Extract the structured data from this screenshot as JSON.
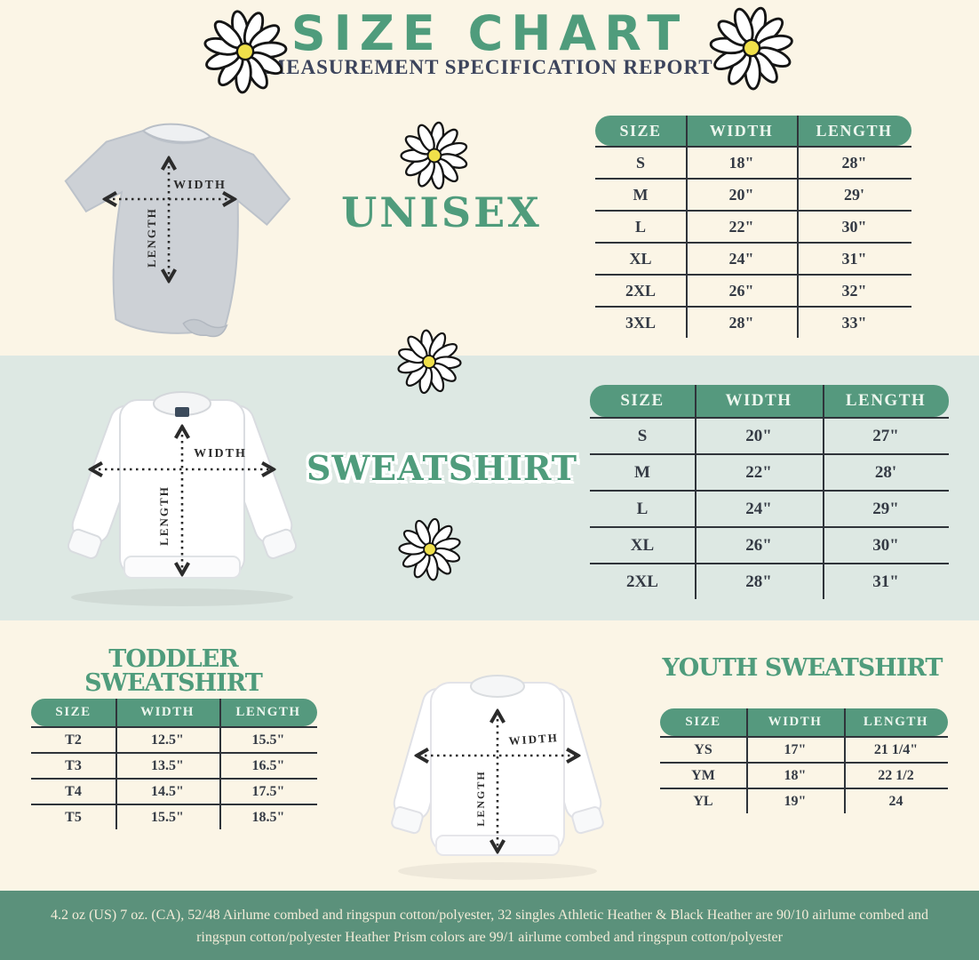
{
  "header": {
    "title": "SIZE CHART",
    "subtitle": "MEASUREMENT SPECIFICATION REPORT"
  },
  "colors": {
    "title_green": "#4f9c7c",
    "table_header_green": "#55997e",
    "mint_section_bg": "#dde8e3",
    "cream_section_bg": "#fbf5e6",
    "footer_band_green": "#5b917b",
    "subtitle_navy": "#3c445c",
    "table_line_dark": "#2f343a",
    "daisy_center_yellow": "#f0e04a"
  },
  "measure_labels": {
    "width": "WIDTH",
    "length": "LENGTH"
  },
  "unisex": {
    "title": "UNISEX",
    "table": {
      "headers": [
        "SIZE",
        "WIDTH",
        "LENGTH"
      ],
      "rows": [
        [
          "S",
          "18\"",
          "28\""
        ],
        [
          "M",
          "20\"",
          "29'"
        ],
        [
          "L",
          "22\"",
          "30\""
        ],
        [
          "XL",
          "24\"",
          "31\""
        ],
        [
          "2XL",
          "26\"",
          "32\""
        ],
        [
          "3XL",
          "28\"",
          "33\""
        ]
      ]
    }
  },
  "sweatshirt": {
    "title": "SWEATSHIRT",
    "table": {
      "headers": [
        "SIZE",
        "WIDTH",
        "LENGTH"
      ],
      "rows": [
        [
          "S",
          "20\"",
          "27\""
        ],
        [
          "M",
          "22\"",
          "28'"
        ],
        [
          "L",
          "24\"",
          "29\""
        ],
        [
          "XL",
          "26\"",
          "30\""
        ],
        [
          "2XL",
          "28\"",
          "31\""
        ]
      ]
    }
  },
  "toddler": {
    "title": "TODDLER SWEATSHIRT",
    "table": {
      "headers": [
        "SIZE",
        "WIDTH",
        "LENGTH"
      ],
      "rows": [
        [
          "T2",
          "12.5\"",
          "15.5\""
        ],
        [
          "T3",
          "13.5\"",
          "16.5\""
        ],
        [
          "T4",
          "14.5\"",
          "17.5\""
        ],
        [
          "T5",
          "15.5\"",
          "18.5\""
        ]
      ]
    }
  },
  "youth": {
    "title": "YOUTH SWEATSHIRT",
    "table": {
      "headers": [
        "SIZE",
        "WIDTH",
        "LENGTH"
      ],
      "rows": [
        [
          "YS",
          "17\"",
          "21 1/4\""
        ],
        [
          "YM",
          "18\"",
          "22 1/2"
        ],
        [
          "YL",
          "19\"",
          "24"
        ]
      ]
    }
  },
  "footer": {
    "line1": "4.2 oz (US) 7 oz. (CA), 52/48 Airlume combed and ringspun cotton/polyester, 32 singles Athletic Heather & Black Heather are 90/10 airlume combed and",
    "line2": "ringspun cotton/polyester Heather Prism colors are 99/1 airlume combed and ringspun cotton/polyester"
  }
}
